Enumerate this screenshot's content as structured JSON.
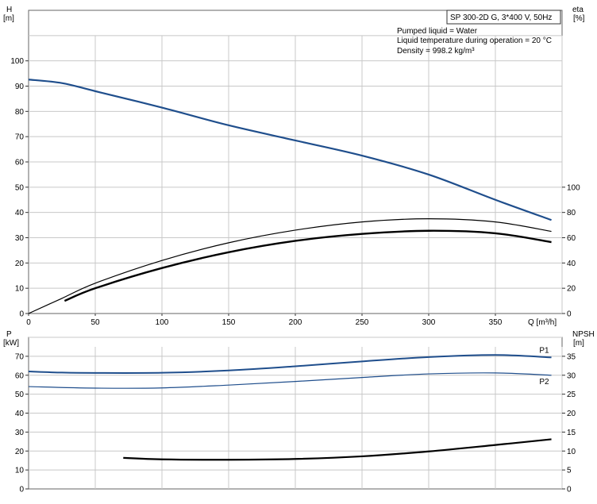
{
  "info": {
    "title": "SP 300-2D G, 3*400 V, 50Hz",
    "lines": [
      "Pumped liquid = Water",
      "Liquid temperature during operation = 20 °C",
      "Density = 998.2 kg/m³"
    ]
  },
  "colors": {
    "curve_blue": "#1f4e8c",
    "curve_black": "#000000",
    "grid": "#c8c8c8"
  },
  "chart_data": [
    {
      "type": "line",
      "panel": "top",
      "xlabel": "Q [m³/h]",
      "ylabel_left": [
        "H",
        "[m]"
      ],
      "ylabel_right": [
        "eta",
        "[%]"
      ],
      "xlim": [
        0,
        400
      ],
      "ylim_left": [
        0,
        120
      ],
      "ylim_right": [
        0,
        240
      ],
      "x_ticks": [
        0,
        50,
        100,
        150,
        200,
        250,
        300,
        350
      ],
      "y_ticks_left": [
        0,
        10,
        20,
        30,
        40,
        50,
        60,
        70,
        80,
        90,
        100
      ],
      "y_ticks_right": [
        0,
        20,
        40,
        60,
        80,
        100
      ],
      "grid": true,
      "series": [
        {
          "axis": "left",
          "color": "#1f4e8c",
          "width": 2.2,
          "x": [
            0,
            25,
            50,
            100,
            150,
            200,
            250,
            300,
            350,
            392
          ],
          "y": [
            92.6,
            91.2,
            88,
            81.5,
            74.5,
            68.5,
            62.5,
            55,
            45,
            37
          ]
        },
        {
          "axis": "right",
          "color": "#000000",
          "width": 1.2,
          "x": [
            0,
            25,
            50,
            100,
            150,
            200,
            250,
            300,
            350,
            392
          ],
          "y": [
            0,
            12,
            24,
            42,
            56,
            66,
            72.5,
            75,
            72.5,
            65
          ]
        },
        {
          "axis": "right",
          "color": "#000000",
          "width": 2.4,
          "x": [
            27,
            50,
            100,
            150,
            200,
            250,
            300,
            350,
            392
          ],
          "y": [
            10,
            20,
            36,
            48.5,
            57.5,
            63,
            65.5,
            63.5,
            56.5
          ]
        }
      ]
    },
    {
      "type": "line",
      "panel": "bottom",
      "ylabel_left": [
        "P",
        "[kW]"
      ],
      "ylabel_right": [
        "NPSH",
        "[m]"
      ],
      "xlim": [
        0,
        400
      ],
      "ylim_left": [
        0,
        80
      ],
      "ylim_right": [
        0,
        40
      ],
      "y_ticks_left": [
        0,
        10,
        20,
        30,
        40,
        50,
        60,
        70
      ],
      "y_ticks_right": [
        0,
        5,
        10,
        15,
        20,
        25,
        30,
        35
      ],
      "grid": true,
      "series": [
        {
          "name": "P1",
          "axis": "left",
          "color": "#1f4e8c",
          "width": 2,
          "x": [
            0,
            25,
            50,
            100,
            150,
            200,
            250,
            300,
            350,
            392
          ],
          "y": [
            62,
            61.4,
            61.2,
            61.3,
            62.5,
            64.7,
            67.3,
            69.6,
            70.7,
            69.4
          ]
        },
        {
          "name": "P2",
          "axis": "left",
          "color": "#1f4e8c",
          "width": 1.2,
          "x": [
            0,
            50,
            100,
            150,
            200,
            250,
            300,
            350,
            392
          ],
          "y": [
            54,
            53.2,
            53.3,
            54.8,
            56.7,
            58.8,
            60.7,
            61.2,
            60
          ]
        },
        {
          "axis": "right",
          "color": "#000000",
          "width": 2.2,
          "x": [
            71,
            100,
            150,
            200,
            250,
            300,
            350,
            392
          ],
          "y": [
            8.2,
            7.8,
            7.7,
            7.9,
            8.6,
            9.9,
            11.6,
            13.1
          ]
        }
      ]
    }
  ]
}
